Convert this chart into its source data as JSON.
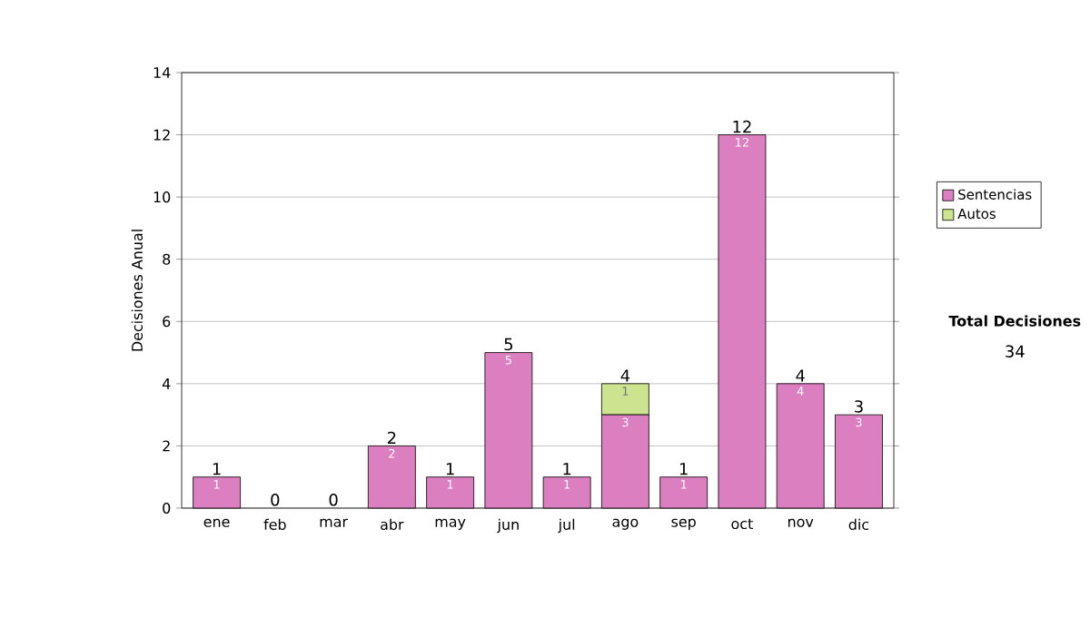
{
  "chart_data": {
    "type": "bar",
    "ylabel": "Decisiones Anual",
    "categories": [
      "ene",
      "feb",
      "mar",
      "abr",
      "may",
      "jun",
      "jul",
      "ago",
      "sep",
      "oct",
      "nov",
      "dic"
    ],
    "series": [
      {
        "name": "Sentencias",
        "color": "#dc7fc0",
        "values": [
          1,
          0,
          0,
          2,
          1,
          5,
          1,
          3,
          1,
          12,
          4,
          3
        ],
        "value_labels": [
          "1",
          null,
          null,
          "2",
          "1",
          "5",
          "1",
          "3",
          "1",
          "12",
          "4",
          "3"
        ]
      },
      {
        "name": "Autos",
        "color": "#cce38f",
        "values": [
          0,
          0,
          0,
          0,
          0,
          0,
          0,
          1,
          0,
          0,
          0,
          0
        ],
        "value_labels": [
          null,
          null,
          null,
          null,
          null,
          null,
          null,
          "1",
          null,
          null,
          null,
          null
        ]
      }
    ],
    "stacked": true,
    "totals": [
      "1",
      "0",
      "0",
      "2",
      "1",
      "5",
      "1",
      "4",
      "1",
      "12",
      "4",
      "3"
    ],
    "ylim": [
      0,
      14
    ],
    "yticks": [
      0,
      2,
      4,
      6,
      8,
      10,
      12,
      14
    ],
    "grid": "y",
    "legend": "right",
    "annotations": [
      "Total Decisiones",
      "34"
    ]
  }
}
